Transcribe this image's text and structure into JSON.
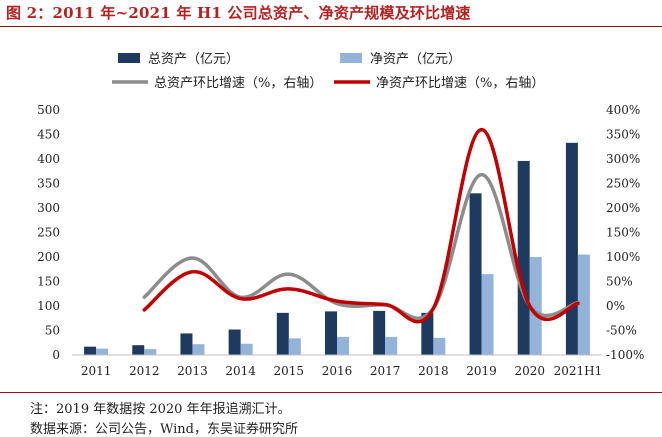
{
  "header": {
    "title": "图 2：2011 年~2021 年 H1 公司总资产、净资产规模及环比增速"
  },
  "footer": {
    "note": "注：2019 年数据按 2020 年年报追溯汇计。",
    "source": "数据来源：公司公告，Wind，东吴证券研究所"
  },
  "colors": {
    "total_assets": "#1f3a5f",
    "net_assets": "#94b3d9",
    "total_growth": "#8c8c8c",
    "net_growth": "#c00000",
    "accent": "#b22222"
  },
  "chart_data": {
    "type": "bar",
    "categories": [
      "2011",
      "2012",
      "2013",
      "2014",
      "2015",
      "2016",
      "2017",
      "2018",
      "2019",
      "2020",
      "2021H1"
    ],
    "series": [
      {
        "name": "总资产（亿元）",
        "kind": "bar",
        "axis": "left",
        "values": [
          17,
          20,
          44,
          52,
          86,
          89,
          90,
          86,
          330,
          396,
          433
        ]
      },
      {
        "name": "净资产（亿元）",
        "kind": "bar",
        "axis": "left",
        "values": [
          13,
          12,
          22,
          23,
          34,
          37,
          37,
          35,
          165,
          200,
          205
        ]
      },
      {
        "name": "总资产环比增速（%，右轴）",
        "kind": "line",
        "axis": "right",
        "values": [
          null,
          18,
          98,
          18,
          65,
          5,
          2,
          -5,
          268,
          0,
          7
        ]
      },
      {
        "name": "净资产环比增速（%，右轴）",
        "kind": "line",
        "axis": "right",
        "values": [
          null,
          -8,
          70,
          15,
          35,
          10,
          3,
          -5,
          360,
          0,
          5
        ]
      }
    ],
    "y_left": {
      "min": 0,
      "max": 500,
      "step": 50,
      "ticks": [
        "0",
        "50",
        "100",
        "150",
        "200",
        "250",
        "300",
        "350",
        "400",
        "450",
        "500"
      ]
    },
    "y_right": {
      "min": -100,
      "max": 400,
      "step": 50,
      "ticks": [
        "-100%",
        "-50%",
        "0%",
        "50%",
        "100%",
        "150%",
        "200%",
        "250%",
        "300%",
        "350%",
        "400%"
      ]
    },
    "legend": [
      {
        "label": "总资产（亿元）",
        "type": "bar",
        "color": "#1f3a5f"
      },
      {
        "label": "净资产（亿元）",
        "type": "bar",
        "color": "#94b3d9"
      },
      {
        "label": "总资产环比增速（%，右轴）",
        "type": "line",
        "color": "#8c8c8c"
      },
      {
        "label": "净资产环比增速（%，右轴）",
        "type": "line",
        "color": "#c00000"
      }
    ],
    "legend_position": "top"
  }
}
